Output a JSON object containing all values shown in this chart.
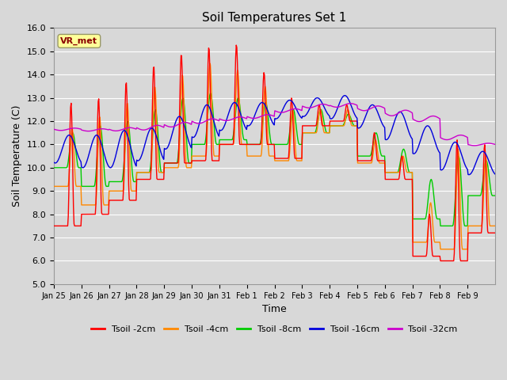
{
  "title": "Soil Temperatures Set 1",
  "xlabel": "Time",
  "ylabel": "Soil Temperature (C)",
  "ylim": [
    5.0,
    16.0
  ],
  "yticks": [
    5.0,
    6.0,
    7.0,
    8.0,
    9.0,
    10.0,
    11.0,
    12.0,
    13.0,
    14.0,
    15.0,
    16.0
  ],
  "background_color": "#d8d8d8",
  "grid_color": "#ffffff",
  "annotation_text": "VR_met",
  "annotation_box_color": "#ffff99",
  "annotation_text_color": "#8b0000",
  "legend_entries": [
    "Tsoil -2cm",
    "Tsoil -4cm",
    "Tsoil -8cm",
    "Tsoil -16cm",
    "Tsoil -32cm"
  ],
  "line_colors": [
    "#ff0000",
    "#ff8800",
    "#00cc00",
    "#0000dd",
    "#cc00cc"
  ],
  "xtick_labels": [
    "Jan 25",
    "Jan 26",
    "Jan 27",
    "Jan 28",
    "Jan 29",
    "Jan 30",
    "Jan 31",
    "Feb 1",
    "Feb 2",
    "Feb 3",
    "Feb 4",
    "Feb 5",
    "Feb 6",
    "Feb 7",
    "Feb 8",
    "Feb 9"
  ],
  "days": 16,
  "pts_per_day": 48
}
